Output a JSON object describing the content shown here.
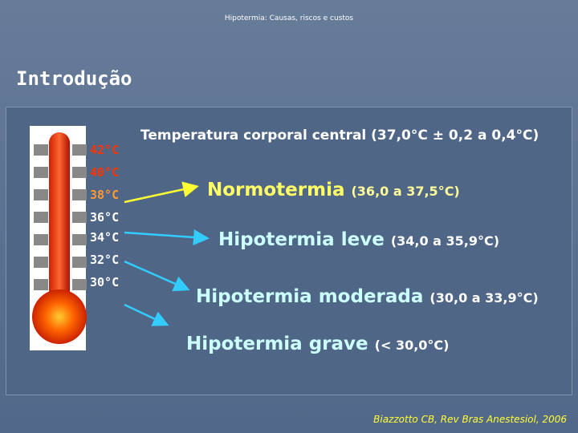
{
  "header": "Hipotermia: Causas, riscos e custos",
  "title": "Introdução",
  "thermometer": {
    "labels": [
      "42°C",
      "40°C",
      "38°C",
      "36°C",
      "34°C",
      "32°C",
      "30°C"
    ]
  },
  "definition": "Temperatura corporal central (37,0°C ± 0,2 a 0,4°C)",
  "classes": [
    {
      "name": "Normotermia",
      "range": "(36,0 a 37,5°C)"
    },
    {
      "name": "Hipotermia leve",
      "range": "(34,0 a 35,9°C)"
    },
    {
      "name": "Hipotermia moderada",
      "range": "(30,0 a 33,9°C)"
    },
    {
      "name": "Hipotermia grave",
      "range": "(< 30,0°C)"
    }
  ],
  "citation": "Biazzotto CB, Rev Bras Anestesiol, 2006"
}
